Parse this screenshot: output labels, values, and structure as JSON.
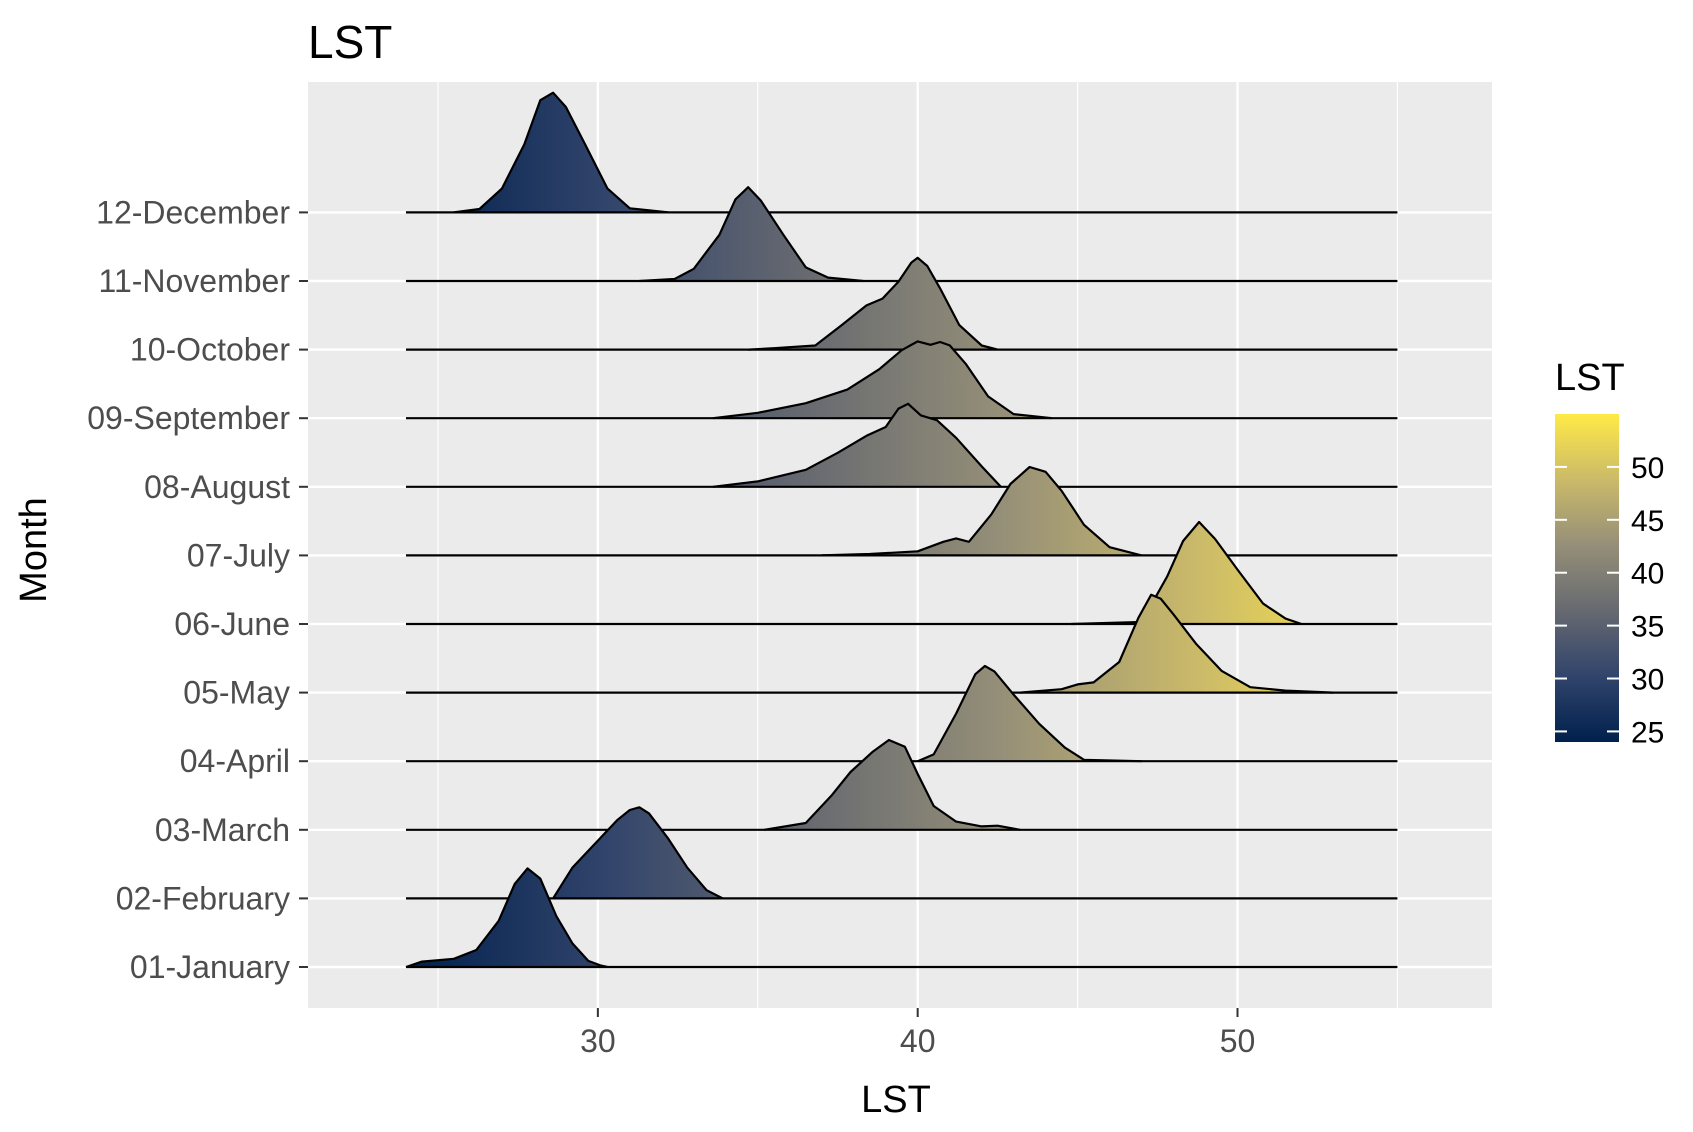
{
  "chart_data": {
    "type": "ridgeline",
    "title": "LST",
    "xlabel": "LST",
    "ylabel": "Month",
    "xlim": [
      22.5,
      56.3
    ],
    "xticks": [
      30,
      40,
      50
    ],
    "grid": true,
    "categories": [
      "01-January",
      "02-February",
      "03-March",
      "04-April",
      "05-May",
      "06-June",
      "07-July",
      "08-August",
      "09-September",
      "10-October",
      "11-November",
      "12-December"
    ],
    "baseline_range": [
      24,
      55
    ],
    "colorscale": {
      "name": "cividis",
      "range": [
        24,
        55
      ],
      "stops": [
        "#00204D",
        "#31446B",
        "#666970",
        "#958F78",
        "#CBBA69",
        "#FFEA46"
      ]
    },
    "series": [
      {
        "name": "01-January",
        "x": [
          24.0,
          24.5,
          25.5,
          26.2,
          26.9,
          27.4,
          27.8,
          28.2,
          28.7,
          29.2,
          29.7,
          30.1,
          30.3
        ],
        "y": [
          0.0,
          0.08,
          0.12,
          0.25,
          0.68,
          1.22,
          1.45,
          1.3,
          0.75,
          0.35,
          0.09,
          0.02,
          0.0
        ]
      },
      {
        "name": "02-February",
        "x": [
          28.6,
          29.2,
          30.0,
          30.6,
          31.0,
          31.3,
          31.6,
          32.2,
          32.8,
          33.4,
          33.9
        ],
        "y": [
          0.0,
          0.45,
          0.85,
          1.15,
          1.3,
          1.34,
          1.25,
          0.88,
          0.45,
          0.12,
          0.0
        ]
      },
      {
        "name": "03-March",
        "x": [
          35.2,
          36.5,
          37.3,
          37.9,
          38.6,
          39.1,
          39.6,
          40.0,
          40.5,
          41.2,
          42.0,
          42.5,
          43.2
        ],
        "y": [
          0.0,
          0.1,
          0.5,
          0.85,
          1.15,
          1.32,
          1.22,
          0.82,
          0.35,
          0.12,
          0.05,
          0.06,
          0.0
        ]
      },
      {
        "name": "04-April",
        "x": [
          40.0,
          40.5,
          41.2,
          41.8,
          42.1,
          42.4,
          43.0,
          43.8,
          44.6,
          45.2,
          47.0
        ],
        "y": [
          0.0,
          0.1,
          0.7,
          1.28,
          1.4,
          1.32,
          0.98,
          0.55,
          0.2,
          0.02,
          0.0
        ]
      },
      {
        "name": "05-May",
        "x": [
          43.2,
          44.5,
          45.0,
          45.5,
          46.3,
          46.9,
          47.3,
          47.6,
          48.0,
          48.7,
          49.5,
          50.4,
          51.5,
          53.0
        ],
        "y": [
          0.0,
          0.05,
          0.12,
          0.15,
          0.45,
          1.1,
          1.44,
          1.38,
          1.15,
          0.72,
          0.32,
          0.08,
          0.03,
          0.0
        ]
      },
      {
        "name": "06-June",
        "x": [
          44.8,
          47.0,
          47.8,
          48.3,
          48.8,
          49.3,
          50.0,
          50.8,
          51.5,
          52.0
        ],
        "y": [
          0.0,
          0.03,
          0.7,
          1.22,
          1.5,
          1.25,
          0.8,
          0.3,
          0.08,
          0.0
        ]
      },
      {
        "name": "07-July",
        "x": [
          37.0,
          38.5,
          40.0,
          40.8,
          41.2,
          41.6,
          42.3,
          42.9,
          43.5,
          44.0,
          44.5,
          45.2,
          46.0,
          47.0
        ],
        "y": [
          0.0,
          0.02,
          0.06,
          0.2,
          0.25,
          0.2,
          0.6,
          1.05,
          1.3,
          1.23,
          0.95,
          0.45,
          0.12,
          0.0
        ]
      },
      {
        "name": "08-August",
        "x": [
          33.6,
          35.0,
          36.5,
          37.5,
          38.4,
          39.0,
          39.4,
          39.7,
          40.1,
          40.6,
          41.2,
          42.0,
          42.6
        ],
        "y": [
          0.0,
          0.08,
          0.25,
          0.5,
          0.75,
          0.88,
          1.15,
          1.22,
          1.05,
          0.98,
          0.72,
          0.3,
          0.0
        ]
      },
      {
        "name": "09-September",
        "x": [
          33.6,
          35.0,
          36.5,
          37.8,
          38.8,
          39.5,
          40.0,
          40.4,
          40.7,
          41.0,
          41.5,
          42.2,
          43.0,
          44.2
        ],
        "y": [
          0.0,
          0.08,
          0.22,
          0.42,
          0.72,
          1.0,
          1.13,
          1.08,
          1.12,
          1.07,
          0.8,
          0.32,
          0.06,
          0.0
        ]
      },
      {
        "name": "10-October",
        "x": [
          34.7,
          35.5,
          36.8,
          37.6,
          38.4,
          38.9,
          39.4,
          39.8,
          40.0,
          40.3,
          40.7,
          41.3,
          42.0,
          42.5
        ],
        "y": [
          0.0,
          0.02,
          0.06,
          0.35,
          0.65,
          0.75,
          1.0,
          1.28,
          1.35,
          1.23,
          0.9,
          0.36,
          0.06,
          0.0
        ]
      },
      {
        "name": "11-November",
        "x": [
          31.3,
          32.4,
          33.0,
          33.8,
          34.3,
          34.7,
          35.1,
          35.8,
          36.5,
          37.2,
          38.3
        ],
        "y": [
          0.0,
          0.03,
          0.18,
          0.68,
          1.2,
          1.38,
          1.18,
          0.68,
          0.2,
          0.05,
          0.0
        ]
      },
      {
        "name": "12-December",
        "x": [
          25.5,
          26.3,
          27.0,
          27.7,
          28.2,
          28.6,
          29.0,
          29.6,
          30.3,
          31.0,
          32.2
        ],
        "y": [
          0.0,
          0.05,
          0.35,
          1.0,
          1.65,
          1.76,
          1.55,
          1.0,
          0.35,
          0.06,
          0.0
        ]
      }
    ],
    "legend": {
      "title": "LST",
      "position": "right",
      "type": "colorbar",
      "ticks": [
        25,
        30,
        35,
        40,
        45,
        50
      ],
      "range": [
        24,
        55
      ]
    }
  }
}
